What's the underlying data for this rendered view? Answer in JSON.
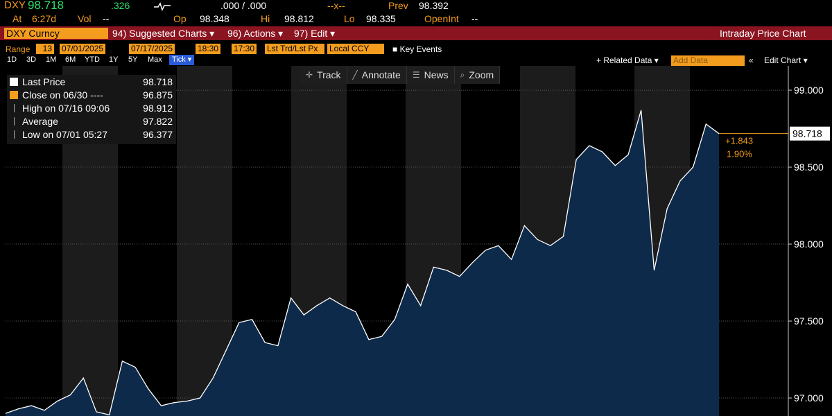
{
  "header": {
    "ticker": "DXY",
    "last": "98.718",
    "change": ".326",
    "bidask": ".000 / .000",
    "size": "--x--",
    "prev_label": "Prev",
    "prev": "98.392",
    "at_label": "At",
    "time": "6:27d",
    "vol_label": "Vol",
    "vol": "--",
    "op_label": "Op",
    "op": "98.348",
    "hi_label": "Hi",
    "hi": "98.812",
    "lo_label": "Lo",
    "lo": "98.335",
    "oi_label": "OpenInt",
    "oi": "--"
  },
  "menu": {
    "security": "DXY Curncy",
    "suggested": "94) Suggested Charts ▾",
    "actions": "96) Actions ▾",
    "edit": "97) Edit ▾",
    "title": "Intraday Price Chart"
  },
  "range_bar": {
    "range_label": "Range",
    "bars": "13",
    "start_date": "07/01/2025",
    "end_date": "07/17/2025",
    "start_time": "18:30",
    "end_time": "17:30",
    "field": "Lst Trd/Lst Px",
    "currency": "Local CCY",
    "key_events": "Key Events"
  },
  "periods": [
    "1D",
    "3D",
    "1M",
    "6M",
    "YTD",
    "1Y",
    "5Y",
    "Max",
    "Tick ▾"
  ],
  "right_tools": {
    "related": "+ Related Data ▾",
    "add": "Add Data",
    "collapse": "«",
    "edit_chart": "Edit Chart ▾"
  },
  "chart_tools": [
    "Track",
    "Annotate",
    "News",
    "Zoom"
  ],
  "legend": [
    {
      "label": "Last Price",
      "value": "98.718"
    },
    {
      "label": "Close on 06/30 ----",
      "value": "96.875"
    },
    {
      "label": "High on 07/16 09:06",
      "value": "98.912"
    },
    {
      "label": "Average",
      "value": "97.822"
    },
    {
      "label": "Low on 07/01 05:27",
      "value": "96.377"
    }
  ],
  "chart_data": {
    "type": "area",
    "color": "#ffffff",
    "fill": "#0e2a4a",
    "values": [
      96.9,
      96.93,
      96.95,
      96.92,
      96.98,
      97.02,
      97.13,
      96.91,
      96.89,
      97.24,
      97.2,
      97.06,
      96.95,
      96.97,
      96.98,
      97.0,
      97.13,
      97.31,
      97.49,
      97.51,
      97.36,
      97.34,
      97.65,
      97.54,
      97.6,
      97.65,
      97.6,
      97.56,
      97.38,
      97.4,
      97.51,
      97.74,
      97.6,
      97.85,
      97.83,
      97.79,
      97.88,
      97.96,
      97.99,
      97.9,
      98.12,
      98.03,
      97.99,
      98.05,
      98.55,
      98.64,
      98.6,
      98.51,
      98.58,
      98.87,
      97.83,
      98.23,
      98.41,
      98.5,
      98.78,
      98.718
    ],
    "ylim": [
      96.883,
      99.158
    ],
    "yticks": [
      {
        "value": 97,
        "label": "97.000"
      },
      {
        "value": 97.5,
        "label": "97.500"
      },
      {
        "value": 98,
        "label": "98.000"
      },
      {
        "value": 98.5,
        "label": "98.500"
      },
      {
        "value": 99,
        "label": "99.000"
      }
    ],
    "grid": true,
    "last_tag": "98.718",
    "net_change": "+1.843",
    "pct_change": "1.90%"
  }
}
